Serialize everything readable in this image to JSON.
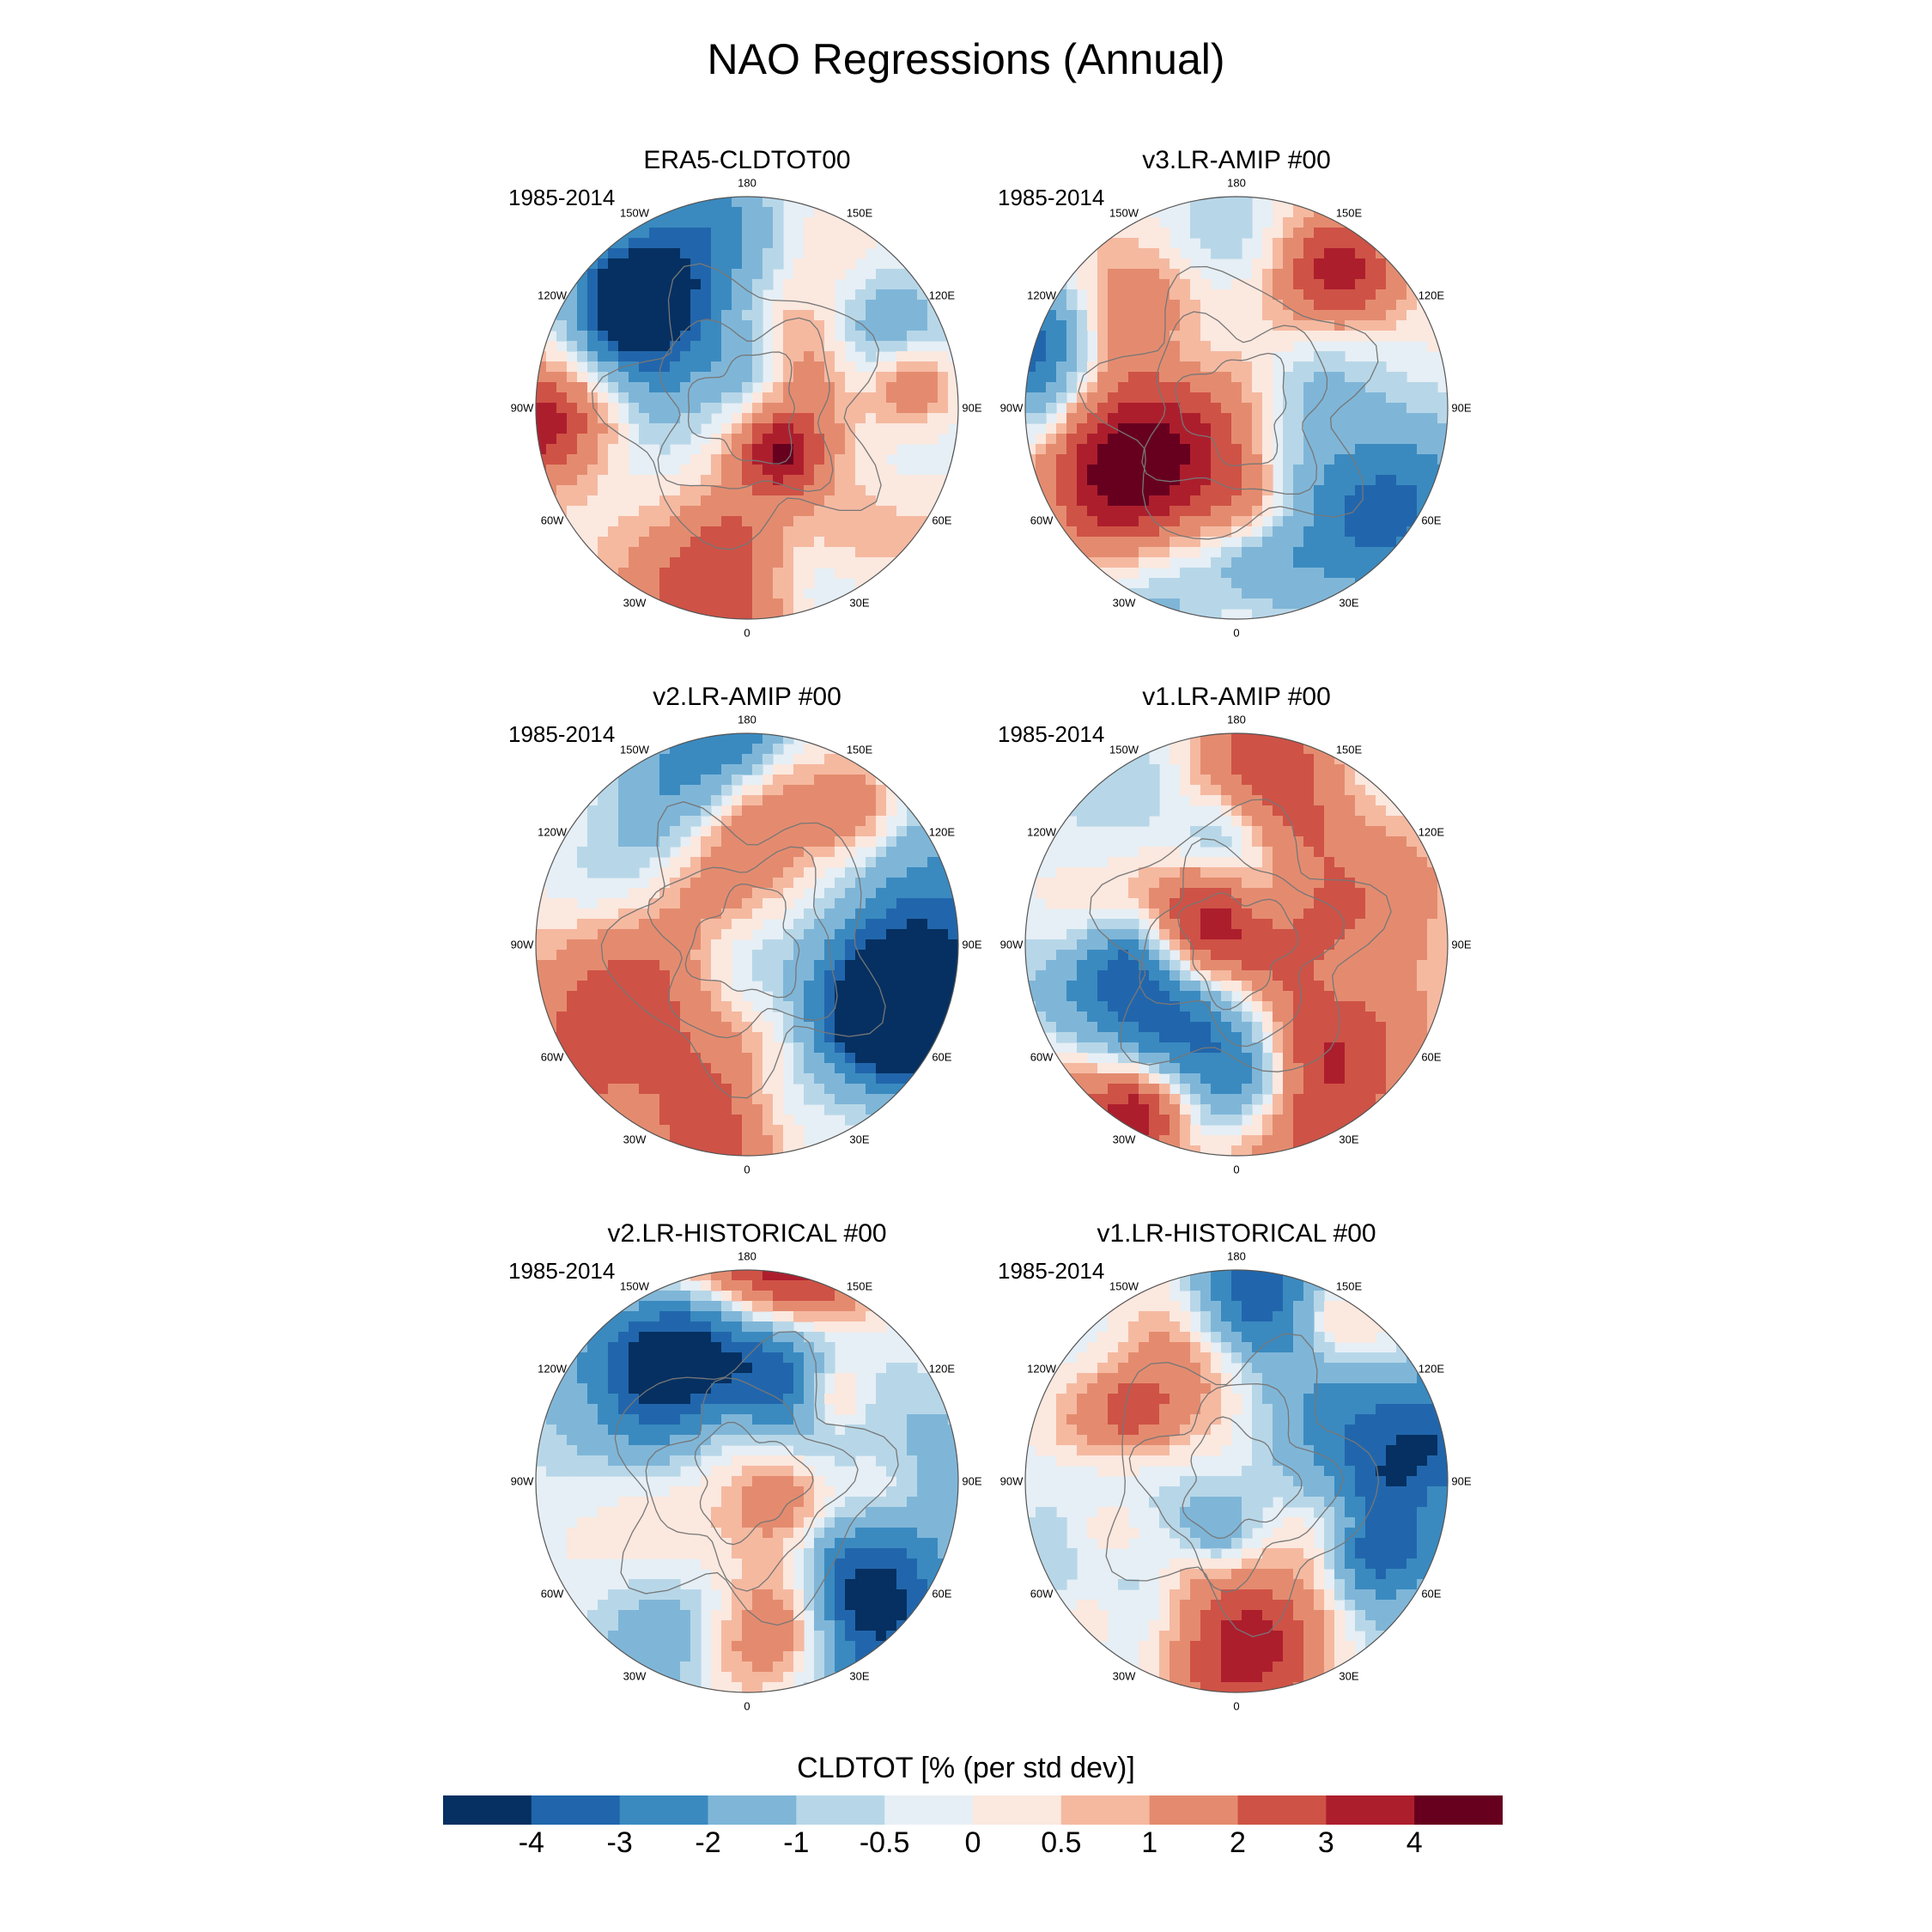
{
  "title": "NAO Regressions (Annual)",
  "period": "1985-2014",
  "longitude_labels": {
    "top": "180",
    "top_left": "150W",
    "top_right": "150E",
    "upper_left": "120W",
    "upper_right": "120E",
    "left": "90W",
    "right": "90E",
    "lower_left": "60W",
    "lower_right": "60E",
    "bottom_left": "30W",
    "bottom_right": "30E",
    "bottom": "0"
  },
  "panels": [
    {
      "title": "ERA5-CLDTOT00",
      "period": "1985-2014",
      "seed": 11
    },
    {
      "title": "v3.LR-AMIP  #00",
      "period": "1985-2014",
      "seed": 23
    },
    {
      "title": "v2.LR-AMIP  #00",
      "period": "1985-2014",
      "seed": 37
    },
    {
      "title": "v1.LR-AMIP  #00",
      "period": "1985-2014",
      "seed": 53
    },
    {
      "title": "v2.LR-HISTORICAL  #00",
      "period": "1985-2014",
      "seed": 71
    },
    {
      "title": "v1.LR-HISTORICAL  #00",
      "period": "1985-2014",
      "seed": 89
    }
  ],
  "colorbar": {
    "title": "CLDTOT [% (per std dev)]",
    "labels": [
      "-4",
      "-3",
      "-2",
      "-1",
      "-0.5",
      "0",
      "0.5",
      "1",
      "2",
      "3",
      "4"
    ],
    "colors": [
      "#053061",
      "#2166ac",
      "#3a8ac0",
      "#7fb6d8",
      "#b7d7e8",
      "#e6eff5",
      "#fbe8df",
      "#f5b9a0",
      "#e48b6f",
      "#cf5246",
      "#ad1e2d",
      "#67001f"
    ]
  }
}
